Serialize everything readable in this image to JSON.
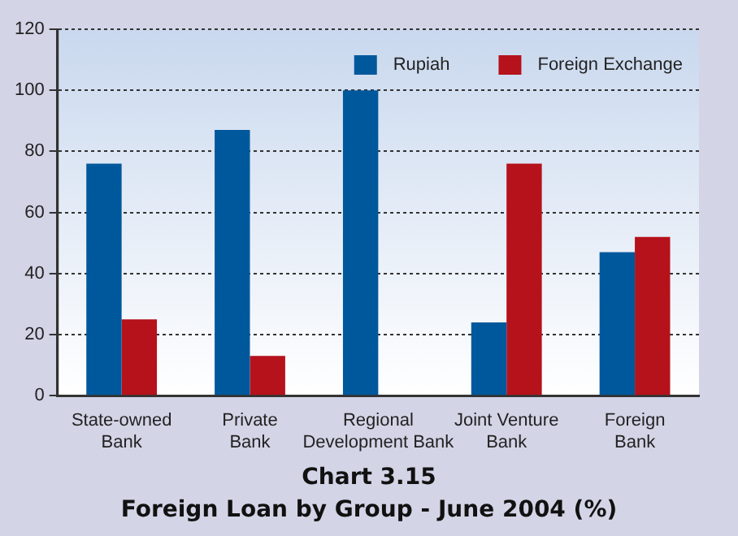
{
  "chart_data": {
    "type": "bar",
    "title": "Chart 3.15",
    "subtitle": "Foreign Loan by Group - June 2004 (%)",
    "categories": [
      "State-owned\nBank",
      "Private\nBank",
      "Regional\nDevelopment Bank",
      "Joint Venture\nBank",
      "Foreign\nBank"
    ],
    "series": [
      {
        "name": "Rupiah",
        "color": "#00589c",
        "values": [
          76,
          87,
          100,
          24,
          47
        ]
      },
      {
        "name": "Foreign Exchange",
        "color": "#b5121b",
        "values": [
          25,
          13,
          0,
          76,
          52
        ]
      }
    ],
    "ylim": [
      0,
      120
    ],
    "yticks": [
      0,
      20,
      40,
      60,
      80,
      100,
      120
    ],
    "grid": "y",
    "line_style": "dotted",
    "legend": "top right"
  }
}
